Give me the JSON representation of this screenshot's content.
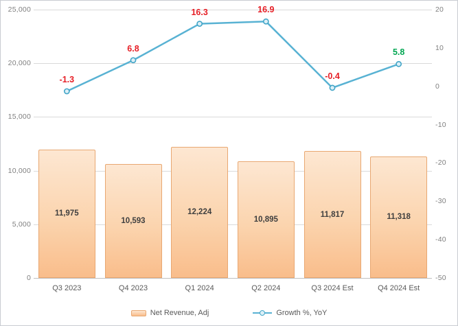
{
  "chart_data": {
    "type": "bar",
    "combo": true,
    "title": "",
    "categories": [
      "Q3 2023",
      "Q4 2023",
      "Q1 2024",
      "Q2 2024",
      "Q3 2024 Est",
      "Q4 2024 Est"
    ],
    "series": [
      {
        "name": "Net Revenue, Adj",
        "type": "bar",
        "axis": "left",
        "values": [
          11975,
          10593,
          12224,
          10895,
          11817,
          11318
        ],
        "labels": [
          "11,975",
          "10,593",
          "12,224",
          "10,895",
          "11,817",
          "11,318"
        ]
      },
      {
        "name": "Growth %, YoY",
        "type": "line",
        "axis": "right",
        "values": [
          -1.3,
          6.8,
          16.3,
          16.9,
          -0.4,
          5.8
        ],
        "labels": [
          "-1.3",
          "6.8",
          "16.3",
          "16.9",
          "-0.4",
          "5.8"
        ],
        "label_colors": [
          "#e61e25",
          "#e61e25",
          "#e61e25",
          "#e61e25",
          "#e61e25",
          "#00a651"
        ]
      }
    ],
    "left_axis": {
      "min": 0,
      "max": 25000,
      "step": 5000,
      "tick_labels": [
        "0",
        "5,000",
        "10,000",
        "15,000",
        "20,000",
        "25,000"
      ]
    },
    "right_axis": {
      "min": -50,
      "max": 20,
      "step": 10,
      "tick_labels": [
        "-50",
        "-40",
        "-30",
        "-20",
        "-10",
        "0",
        "10",
        "20"
      ]
    },
    "grid": "horizontal",
    "legend": {
      "position": "bottom",
      "items": [
        {
          "label": "Net Revenue, Adj",
          "swatch": "bar"
        },
        {
          "label": "Growth %, YoY",
          "swatch": "line"
        }
      ]
    },
    "colors": {
      "bar_fill_top": "#fde7d2",
      "bar_fill_bottom": "#f9bd8b",
      "bar_border": "#e8a771",
      "line": "#58b2d3",
      "marker_fill": "#dceff7",
      "marker_border": "#41a5c7",
      "label_red": "#e61e25",
      "label_green": "#00a651",
      "gridline": "#d9d9d9",
      "axis_line": "#bfbfbf",
      "tick_text": "#7f7f7f",
      "category_text": "#595959",
      "bar_value_text": "#3f3f3f",
      "legend_text": "#595959"
    }
  }
}
